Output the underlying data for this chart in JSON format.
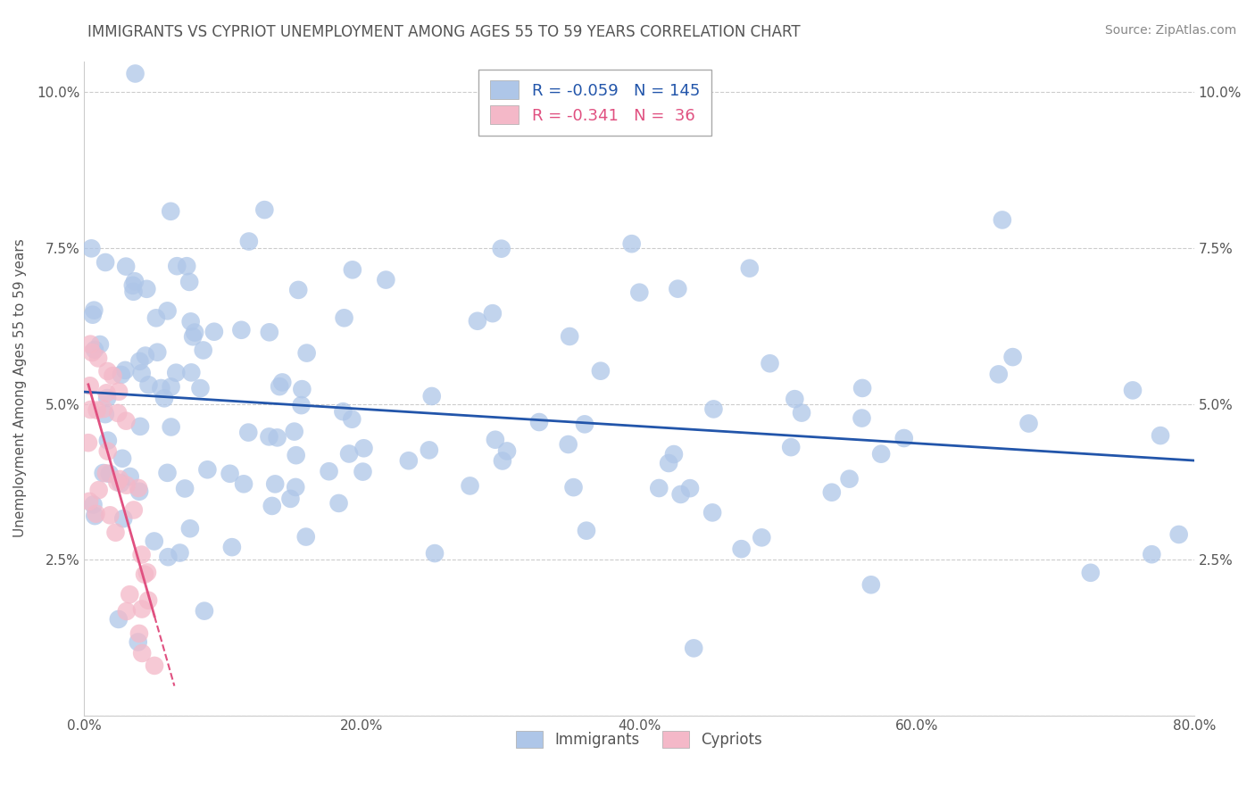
{
  "title": "IMMIGRANTS VS CYPRIOT UNEMPLOYMENT AMONG AGES 55 TO 59 YEARS CORRELATION CHART",
  "source": "Source: ZipAtlas.com",
  "ylabel": "Unemployment Among Ages 55 to 59 years",
  "xlim": [
    0.0,
    0.8
  ],
  "ylim": [
    0.0,
    0.105
  ],
  "immigrants_color": "#aec6e8",
  "cypriots_color": "#f4b8c8",
  "immigrants_line_color": "#2255aa",
  "cypriots_line_color": "#e05080",
  "background_color": "#ffffff",
  "grid_color": "#cccccc",
  "title_color": "#555555",
  "imm_seed": 12,
  "cyp_seed": 77
}
